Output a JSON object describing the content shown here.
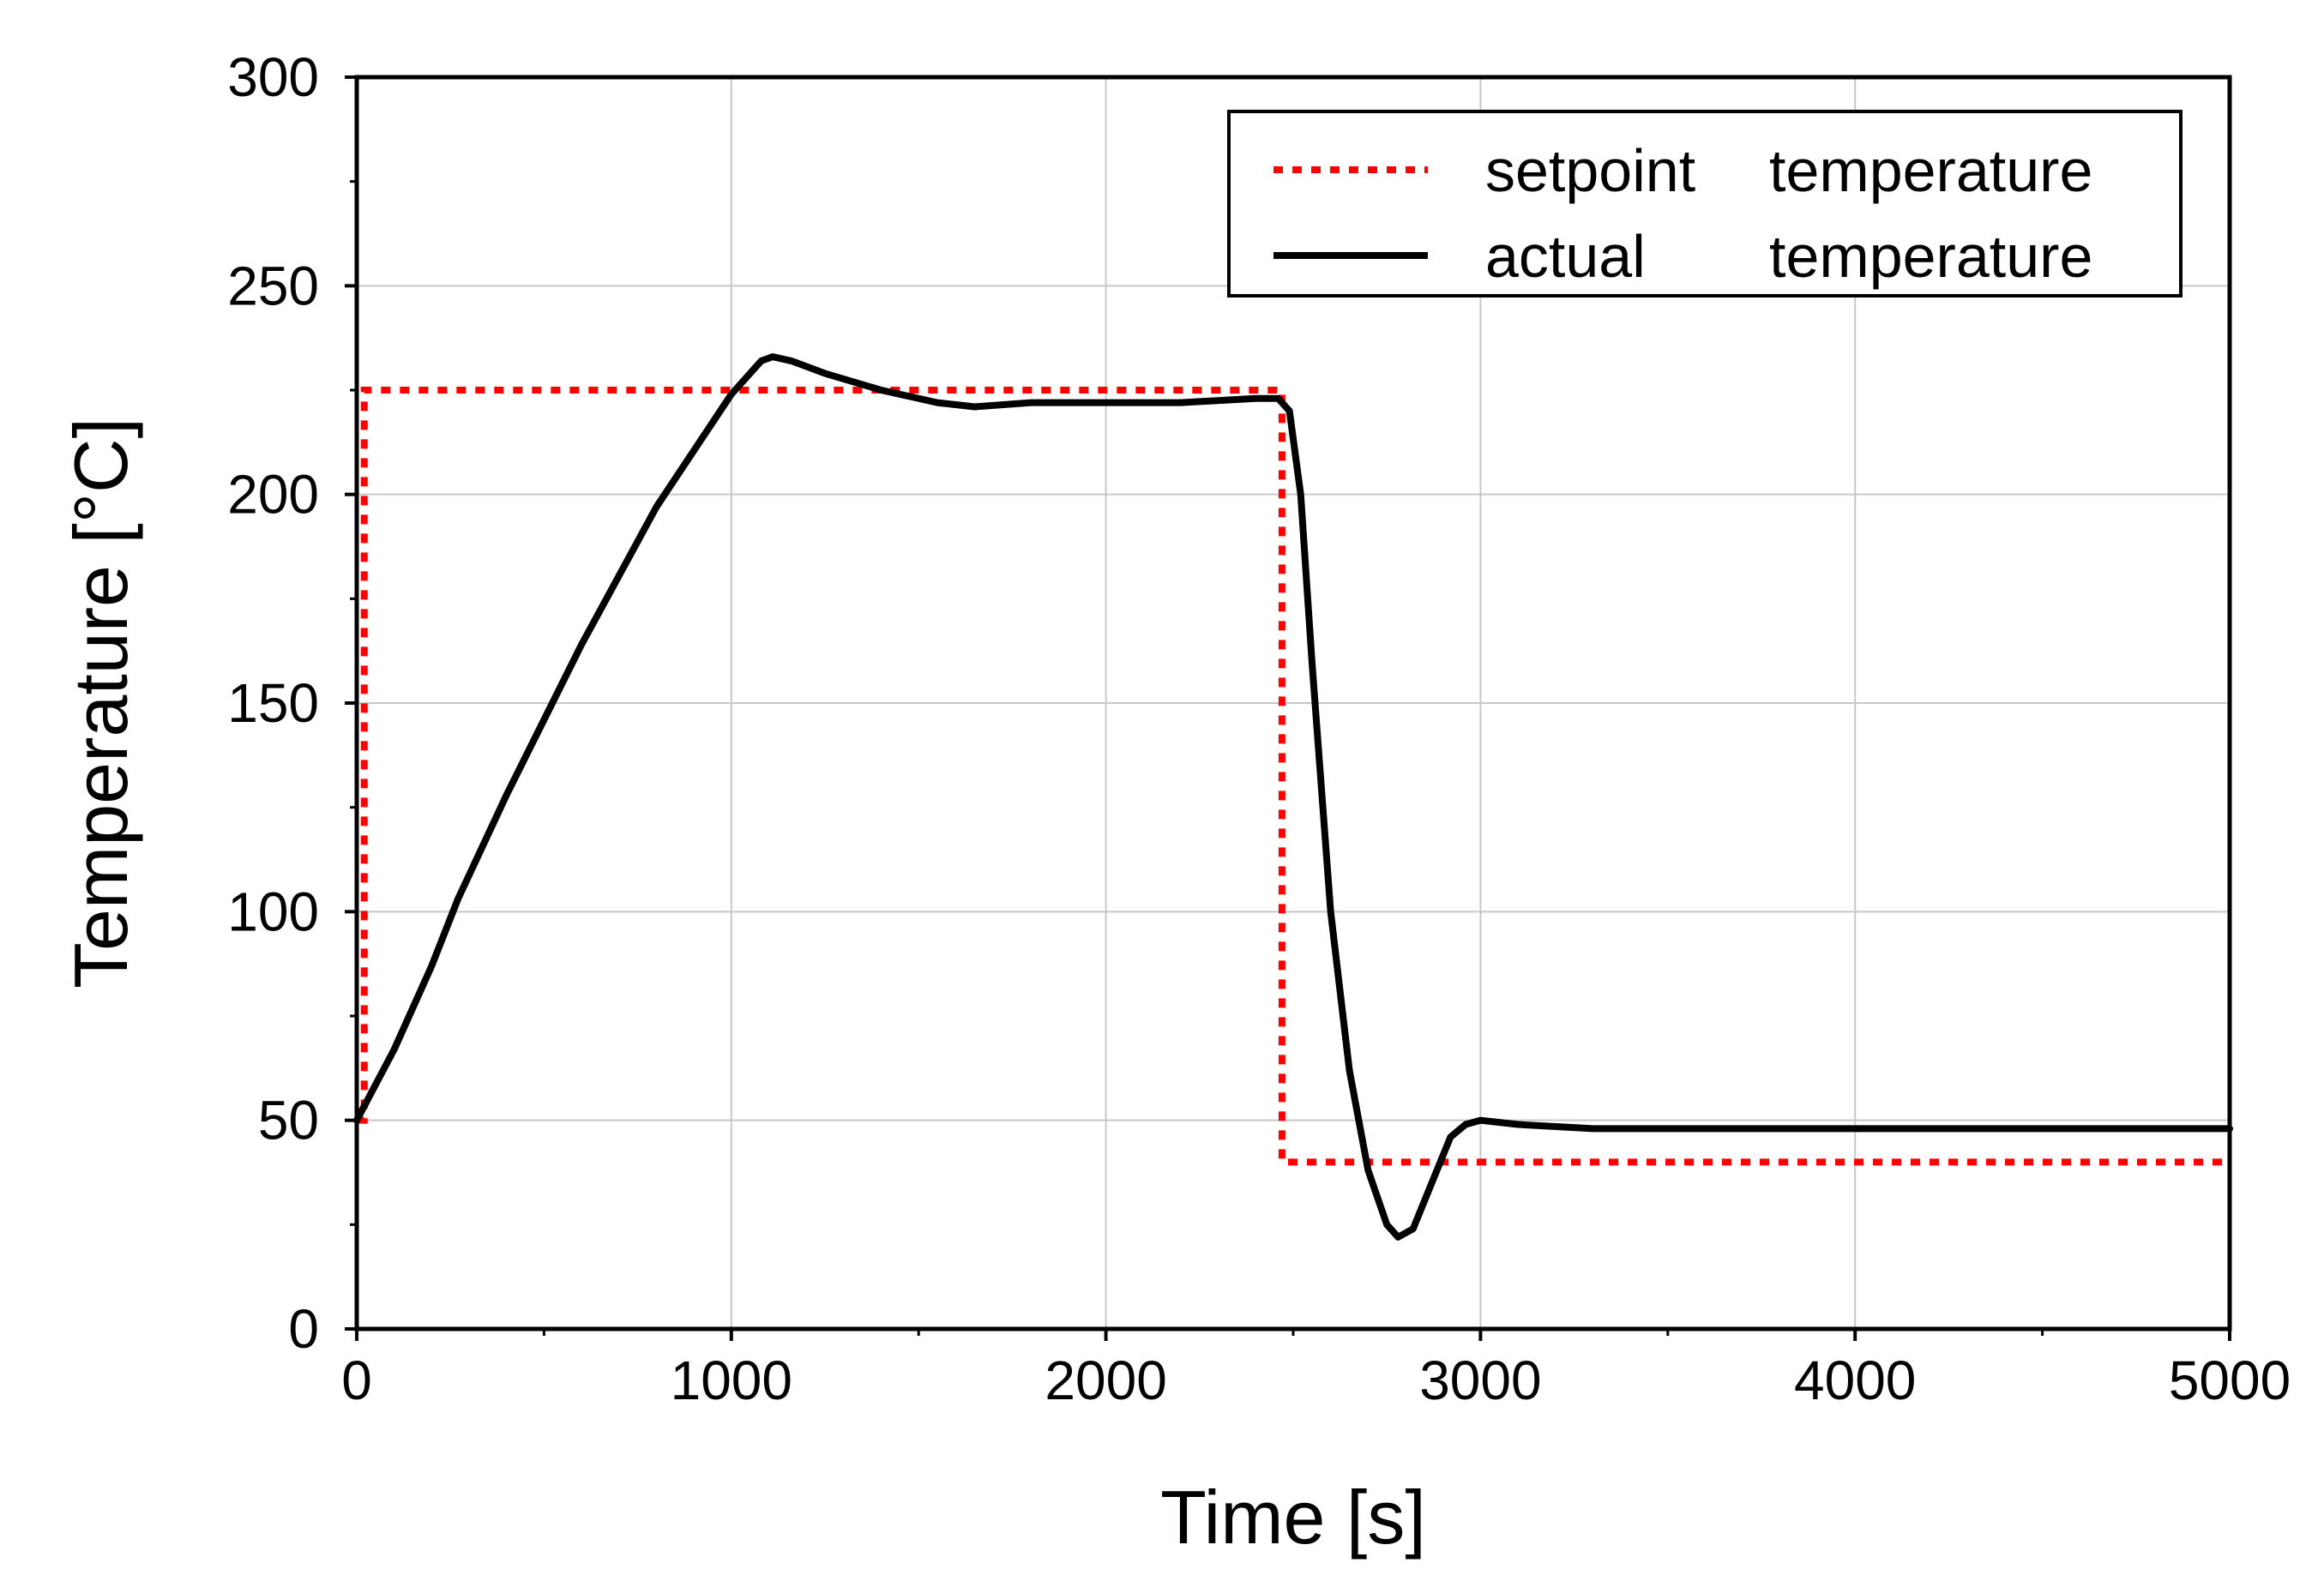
{
  "chart_data": {
    "type": "line",
    "title": "",
    "xlabel": "Time [s]",
    "ylabel": "Temperature [°C]",
    "xlim": [
      0,
      5000
    ],
    "ylim": [
      0,
      300
    ],
    "xticks": [
      0,
      1000,
      2000,
      3000,
      4000,
      5000
    ],
    "xtick_labels": [
      "0",
      "1000",
      "2000",
      "3000",
      "4000",
      "5000"
    ],
    "yticks": [
      0,
      50,
      100,
      150,
      200,
      250,
      300
    ],
    "ytick_labels": [
      "0",
      "50",
      "100",
      "150",
      "200",
      "250",
      "300"
    ],
    "grid": true,
    "legend_position": "top-right",
    "colors": {
      "setpoint": "#ff0000",
      "actual": "#000000",
      "grid": "#c8c8c8",
      "axis": "#000000"
    },
    "series": [
      {
        "name": "setpoint temperature",
        "legend_word1": "setpoint",
        "legend_word2": "temperature",
        "style": "dotted",
        "color": "#ff0000",
        "x": [
          0,
          20,
          20,
          2470,
          2470,
          5000
        ],
        "y": [
          50,
          50,
          225,
          225,
          40,
          40
        ]
      },
      {
        "name": "actual temperature",
        "legend_word1": "actual",
        "legend_word2": "temperature",
        "style": "solid",
        "color": "#000000",
        "x": [
          0,
          100,
          200,
          270,
          400,
          600,
          800,
          1000,
          1080,
          1110,
          1160,
          1250,
          1400,
          1550,
          1650,
          1800,
          2000,
          2200,
          2400,
          2460,
          2490,
          2520,
          2550,
          2600,
          2650,
          2700,
          2750,
          2780,
          2820,
          2870,
          2920,
          2960,
          3000,
          3100,
          3300,
          3500,
          4000,
          4500,
          5000
        ],
        "y": [
          50,
          67,
          87,
          103,
          128,
          164,
          197,
          224,
          232,
          233,
          232,
          229,
          225,
          222,
          221,
          222,
          222,
          222,
          223,
          223,
          220,
          200,
          160,
          100,
          62,
          38,
          25,
          22,
          24,
          35,
          46,
          49,
          50,
          49,
          48,
          48,
          48,
          48,
          48
        ]
      }
    ]
  }
}
